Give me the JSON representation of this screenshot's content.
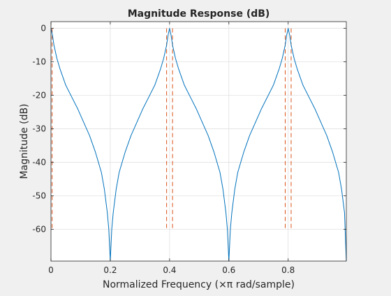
{
  "figure": {
    "background": "#f0f0f0"
  },
  "chart_data": {
    "type": "line",
    "title": "Magnitude Response (dB)",
    "xlabel": "Normalized Frequency (×π rad/sample)",
    "ylabel": "Magnitude (dB)",
    "xlim": [
      0,
      0.9961
    ],
    "ylim": [
      -69.5,
      2
    ],
    "xticks": [
      0,
      0.2,
      0.4,
      0.6,
      0.8
    ],
    "xtick_labels": [
      "0",
      "0.2",
      "0.4",
      "0.6",
      "0.8"
    ],
    "yticks": [
      0,
      -10,
      -20,
      -30,
      -40,
      -50,
      -60
    ],
    "ytick_labels": [
      "0",
      "-10",
      "-20",
      "-30",
      "-40",
      "-50",
      "-60"
    ],
    "grid": true,
    "legend": "none",
    "colors": {
      "response": "#0072bd",
      "marker": "#d95319",
      "grid": "#dcdcdc",
      "axes_bg": "#ffffff",
      "axes_edge": "#262626",
      "text": "#262626"
    },
    "series": [
      {
        "style": "solid",
        "note_shape": "comb response with peaks of 0 dB and deep nulls",
        "peaks_x": [
          0.0,
          0.4,
          0.8
        ],
        "nulls_x": [
          0.2,
          0.6,
          0.9961
        ],
        "x": [
          0,
          0.005,
          0.01,
          0.02,
          0.03,
          0.05,
          0.07,
          0.09,
          0.11,
          0.13,
          0.15,
          0.17,
          0.18,
          0.19,
          0.195,
          0.2,
          0.205,
          0.21,
          0.22,
          0.23,
          0.25,
          0.27,
          0.29,
          0.31,
          0.33,
          0.35,
          0.37,
          0.38,
          0.39,
          0.395,
          0.4,
          0.405,
          0.41,
          0.42,
          0.43,
          0.45,
          0.47,
          0.49,
          0.51,
          0.53,
          0.55,
          0.57,
          0.58,
          0.59,
          0.595,
          0.6,
          0.605,
          0.61,
          0.62,
          0.63,
          0.65,
          0.67,
          0.69,
          0.71,
          0.73,
          0.75,
          0.77,
          0.78,
          0.79,
          0.795,
          0.8,
          0.805,
          0.81,
          0.82,
          0.83,
          0.85,
          0.87,
          0.89,
          0.91,
          0.93,
          0.95,
          0.97,
          0.98,
          0.99,
          0.9961
        ],
        "y": [
          0,
          -2,
          -5,
          -9,
          -12,
          -17,
          -20.5,
          -24,
          -28,
          -32,
          -37,
          -43,
          -48,
          -55,
          -60,
          -69.5,
          -60,
          -55,
          -48,
          -43,
          -37,
          -32,
          -28,
          -24,
          -20.5,
          -17,
          -12,
          -9,
          -5,
          -2,
          0,
          -2,
          -5,
          -9,
          -12,
          -17,
          -20.5,
          -24,
          -28,
          -32,
          -37,
          -43,
          -48,
          -55,
          -60,
          -69.5,
          -60,
          -55,
          -48,
          -43,
          -37,
          -32,
          -28,
          -24,
          -20.5,
          -17,
          -12,
          -9,
          -5,
          -2,
          0,
          -2,
          -5,
          -9,
          -12,
          -17,
          -20.5,
          -24,
          -28,
          -32,
          -37,
          -43,
          -48,
          -55,
          -69.5
        ]
      },
      {
        "style": "dashed",
        "note_shape": "vertical marker lines from 0 dB down to -60 dB",
        "x": [
          0.004,
          0.39,
          0.41,
          0.79,
          0.81
        ],
        "y_top": 0,
        "y_bottom": -60
      }
    ]
  }
}
